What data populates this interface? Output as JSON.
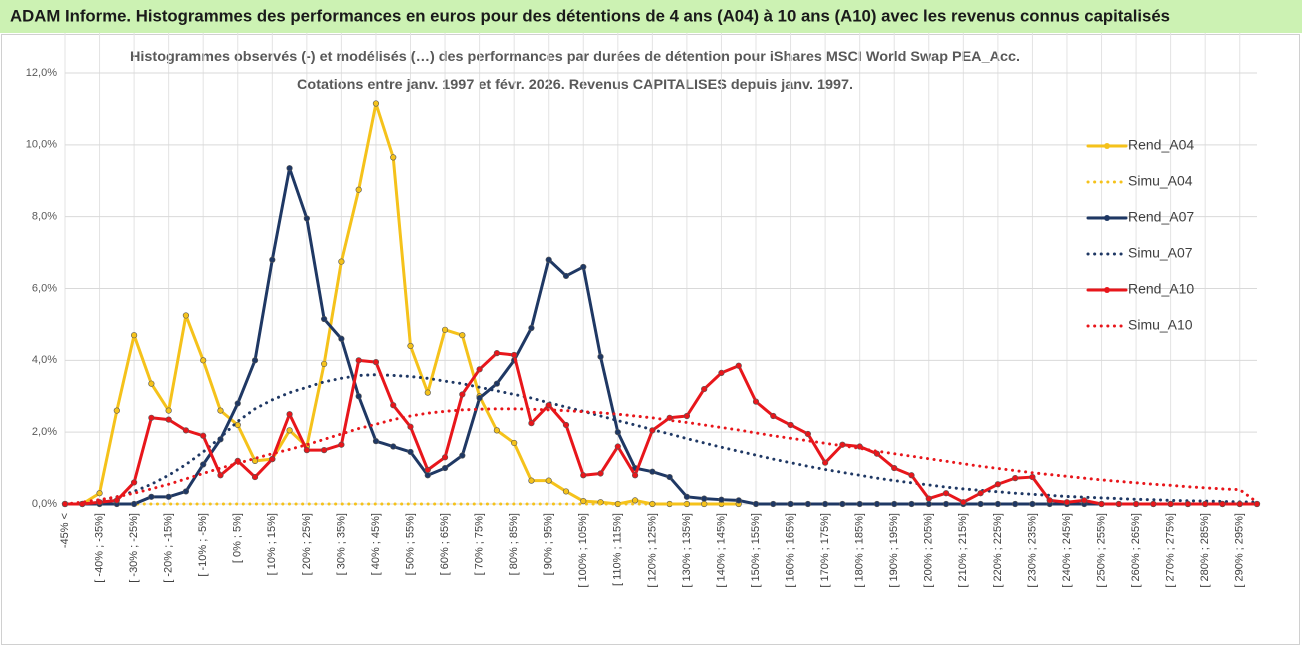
{
  "chart_data": {
    "type": "line",
    "title": "ADAM Informe. Histogrammes des performances en euros pour des détentions de 4 ans (A04) à 10 ans (A10) avec les revenus connus capitalisés",
    "subtitle": [
      "Histogrammes observés (-) et modélisés (…) des performances par durées de détention pour iShares MSCI World Swap PEA_Acc.",
      "Cotations entre janv. 1997 et févr. 2026. Revenus CAPITALISES depuis janv. 1997."
    ],
    "categories": [
      "-45% <",
      null,
      "[ -40% ; -35%]",
      null,
      "[ -30% ; -25%]",
      null,
      "[ -20% ; -15%]",
      null,
      "[ -10% ; -5%]",
      null,
      "[ 0% ; 5%]",
      null,
      "[ 10% ; 15%]",
      null,
      "[ 20% ; 25%]",
      null,
      "[ 30% ; 35%]",
      null,
      "[ 40% ; 45%]",
      null,
      "[ 50% ; 55%]",
      null,
      "[ 60% ; 65%]",
      null,
      "[ 70% ; 75%]",
      null,
      "[ 80% ; 85%]",
      null,
      "[ 90% ; 95%]",
      null,
      "[ 100% ; 105%]",
      null,
      "[ 110% ; 115%]",
      null,
      "[ 120% ; 125%]",
      null,
      "[ 130% ; 135%]",
      null,
      "[ 140% ; 145%]",
      null,
      "[ 150% ; 155%]",
      null,
      "[ 160% ; 165%]",
      null,
      "[ 170% ; 175%]",
      null,
      "[ 180% ; 185%]",
      null,
      "[ 190% ; 195%]",
      null,
      "[ 200% ; 205%]",
      null,
      "[ 210% ; 215%]",
      null,
      "[ 220% ; 225%]",
      null,
      "[ 230% ; 235%]",
      null,
      "[ 240% ; 245%]",
      null,
      "[ 250% ; 255%]",
      null,
      "[ 260% ; 265%]",
      null,
      "[ 270% ; 275%]",
      null,
      "[ 280% ; 285%]",
      null,
      "[ 290% ; 295%]",
      null
    ],
    "series": [
      {
        "name": "Rend_A04",
        "color": "#f5c21b",
        "line_style": "solid",
        "markers": true,
        "values": [
          0,
          0,
          0.3,
          2.6,
          4.7,
          3.35,
          2.6,
          5.25,
          4.0,
          2.6,
          2.2,
          1.2,
          1.25,
          2.05,
          1.6,
          3.9,
          6.75,
          8.75,
          11.15,
          9.65,
          4.4,
          3.1,
          4.85,
          4.7,
          3.0,
          2.05,
          1.7,
          0.65,
          0.65,
          0.35,
          0.08,
          0.05,
          0,
          0.1,
          0,
          0,
          0,
          0,
          0,
          0,
          null,
          null,
          null,
          null,
          null,
          null,
          null,
          null,
          null,
          null,
          null,
          null,
          null,
          null,
          null,
          null,
          null,
          null,
          null,
          null,
          null,
          null,
          null,
          null,
          null,
          null,
          null,
          null,
          null,
          null
        ]
      },
      {
        "name": "Simu_A04",
        "color": "#f5c21b",
        "line_style": "dotted",
        "markers": false,
        "values": [
          0,
          0,
          0,
          0,
          0,
          0,
          0,
          0,
          0,
          0,
          0,
          0,
          0,
          0,
          0,
          0,
          0,
          0,
          0,
          0,
          0,
          0,
          0,
          0,
          0,
          0,
          0,
          0,
          0,
          0,
          0,
          0,
          0,
          0,
          0,
          0,
          0,
          0,
          0,
          0,
          null,
          null,
          null,
          null,
          null,
          null,
          null,
          null,
          null,
          null,
          null,
          null,
          null,
          null,
          null,
          null,
          null,
          null,
          null,
          null,
          null,
          null,
          null,
          null,
          null,
          null,
          null,
          null,
          null,
          null
        ]
      },
      {
        "name": "Rend_A07",
        "color": "#1f3864",
        "line_style": "solid",
        "markers": true,
        "values": [
          0,
          0,
          0,
          0,
          0,
          0.2,
          0.2,
          0.35,
          1.1,
          1.8,
          2.8,
          4.0,
          6.8,
          9.35,
          7.95,
          5.15,
          4.6,
          3.0,
          1.75,
          1.6,
          1.45,
          0.8,
          1.0,
          1.35,
          2.95,
          3.35,
          4.0,
          4.9,
          6.8,
          6.35,
          6.6,
          4.1,
          2.0,
          1.0,
          0.9,
          0.75,
          0.2,
          0.15,
          0.12,
          0.1,
          0,
          0,
          0,
          0,
          0,
          0,
          0,
          0,
          0,
          0,
          0,
          0,
          0,
          0,
          0,
          0,
          0,
          0,
          0,
          0,
          0,
          0,
          0,
          0,
          0,
          0,
          0,
          0,
          0,
          0
        ]
      },
      {
        "name": "Simu_A07",
        "color": "#1f3864",
        "line_style": "dotted",
        "markers": false,
        "values": [
          0,
          0,
          0.1,
          0.2,
          0.35,
          0.55,
          0.8,
          1.1,
          1.45,
          1.85,
          2.3,
          2.65,
          2.9,
          3.1,
          3.25,
          3.4,
          3.5,
          3.58,
          3.6,
          3.58,
          3.55,
          3.5,
          3.42,
          3.35,
          3.25,
          3.15,
          3.05,
          2.95,
          2.82,
          2.7,
          2.58,
          2.45,
          2.32,
          2.2,
          2.07,
          1.95,
          1.82,
          1.7,
          1.58,
          1.47,
          1.36,
          1.25,
          1.15,
          1.05,
          0.96,
          0.88,
          0.8,
          0.72,
          0.65,
          0.59,
          0.53,
          0.47,
          0.42,
          0.38,
          0.34,
          0.3,
          0.27,
          0.24,
          0.21,
          0.19,
          0.17,
          0.15,
          0.13,
          0.12,
          0.1,
          0.09,
          0.08,
          0.07,
          0.06,
          0.05
        ]
      },
      {
        "name": "Rend_A10",
        "color": "#e8161b",
        "line_style": "solid",
        "markers": true,
        "values": [
          0,
          0,
          0.05,
          0.1,
          0.6,
          2.4,
          2.35,
          2.05,
          1.9,
          0.8,
          1.2,
          0.75,
          1.25,
          2.5,
          1.5,
          1.5,
          1.65,
          4.0,
          3.95,
          2.75,
          2.15,
          0.95,
          1.3,
          3.05,
          3.75,
          4.2,
          4.15,
          2.25,
          2.75,
          2.2,
          0.8,
          0.85,
          1.6,
          0.8,
          2.05,
          2.4,
          2.45,
          3.2,
          3.65,
          3.85,
          2.85,
          2.45,
          2.2,
          1.95,
          1.15,
          1.65,
          1.6,
          1.4,
          1.0,
          0.8,
          0.15,
          0.3,
          0.05,
          0.3,
          0.55,
          0.72,
          0.75,
          0.1,
          0.05,
          0.1,
          0,
          0,
          0,
          0,
          0,
          0,
          0,
          0,
          0,
          0
        ]
      },
      {
        "name": "Simu_A10",
        "color": "#e8161b",
        "line_style": "dotted",
        "markers": false,
        "values": [
          0,
          0.05,
          0.12,
          0.2,
          0.3,
          0.42,
          0.55,
          0.7,
          0.85,
          1.0,
          1.13,
          1.27,
          1.4,
          1.52,
          1.65,
          1.8,
          1.95,
          2.1,
          2.22,
          2.35,
          2.45,
          2.53,
          2.58,
          2.62,
          2.64,
          2.65,
          2.65,
          2.64,
          2.62,
          2.6,
          2.57,
          2.54,
          2.5,
          2.45,
          2.4,
          2.33,
          2.27,
          2.2,
          2.13,
          2.06,
          1.98,
          1.9,
          1.83,
          1.76,
          1.69,
          1.62,
          1.55,
          1.47,
          1.4,
          1.33,
          1.26,
          1.19,
          1.12,
          1.05,
          0.99,
          0.93,
          0.87,
          0.82,
          0.77,
          0.72,
          0.67,
          0.63,
          0.59,
          0.55,
          0.52,
          0.48,
          0.45,
          0.42,
          0.4,
          0.05
        ]
      }
    ],
    "ylim": [
      0,
      12
    ],
    "yticks": [
      {
        "value": 0,
        "label": "0,0%"
      },
      {
        "value": 2,
        "label": "2,0%"
      },
      {
        "value": 4,
        "label": "4,0%"
      },
      {
        "value": 6,
        "label": "6,0%"
      },
      {
        "value": 8,
        "label": "8,0%"
      },
      {
        "value": 10,
        "label": "10,0%"
      },
      {
        "value": 12,
        "label": "12,0%"
      }
    ],
    "grid": true,
    "legend": "right"
  }
}
